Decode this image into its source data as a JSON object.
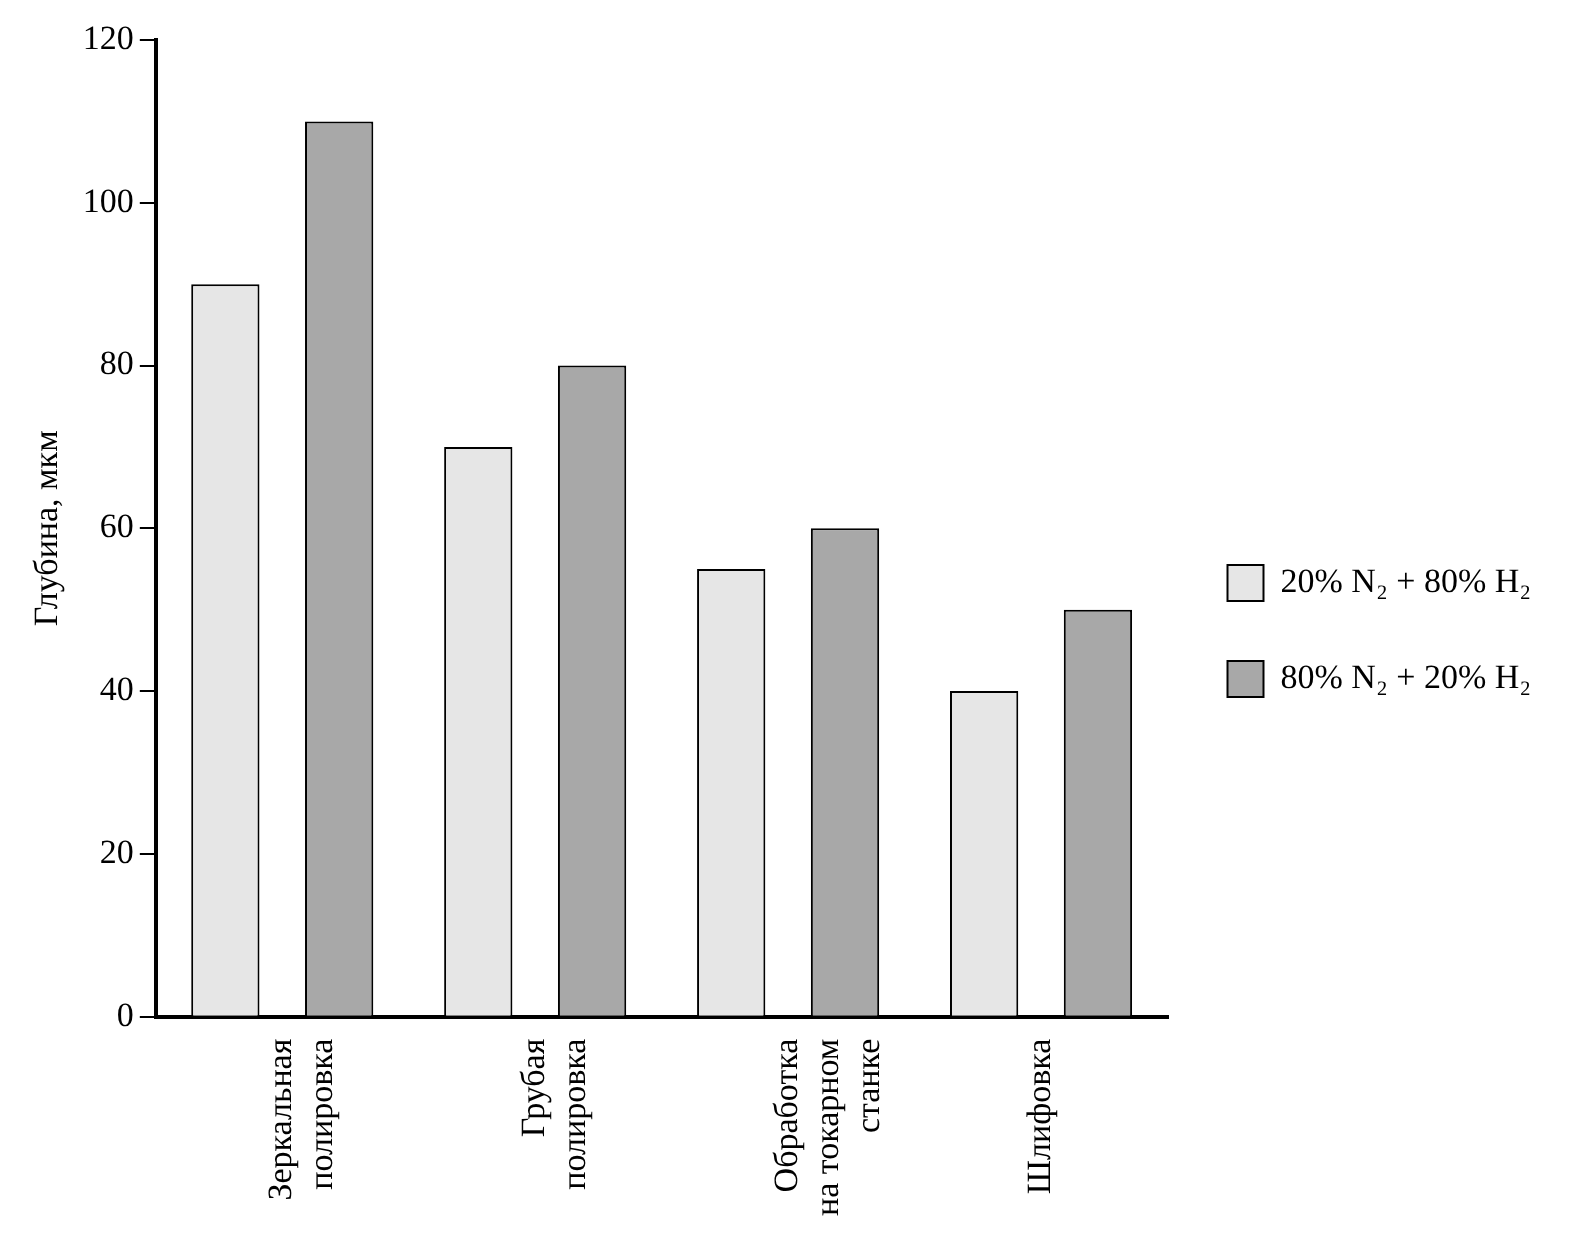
{
  "chart_data": {
    "type": "bar",
    "ylabel": "Глубина, мкм",
    "categories": [
      "Зеркальная полировка",
      "Грубая полировка",
      "Обработка на токарном станке",
      "Шлифовка"
    ],
    "series": [
      {
        "name": "20% N₂ + 80% H₂",
        "color": "#e6e6e6",
        "values": [
          90,
          70,
          55,
          40
        ]
      },
      {
        "name": "80% N₂ + 20% H₂",
        "color": "#a8a8a8",
        "values": [
          110,
          80,
          60,
          50
        ]
      }
    ],
    "ylim": [
      0,
      120
    ],
    "yticks": [
      0,
      20,
      40,
      60,
      80,
      100,
      120
    ],
    "grid": false,
    "legend": "right"
  }
}
